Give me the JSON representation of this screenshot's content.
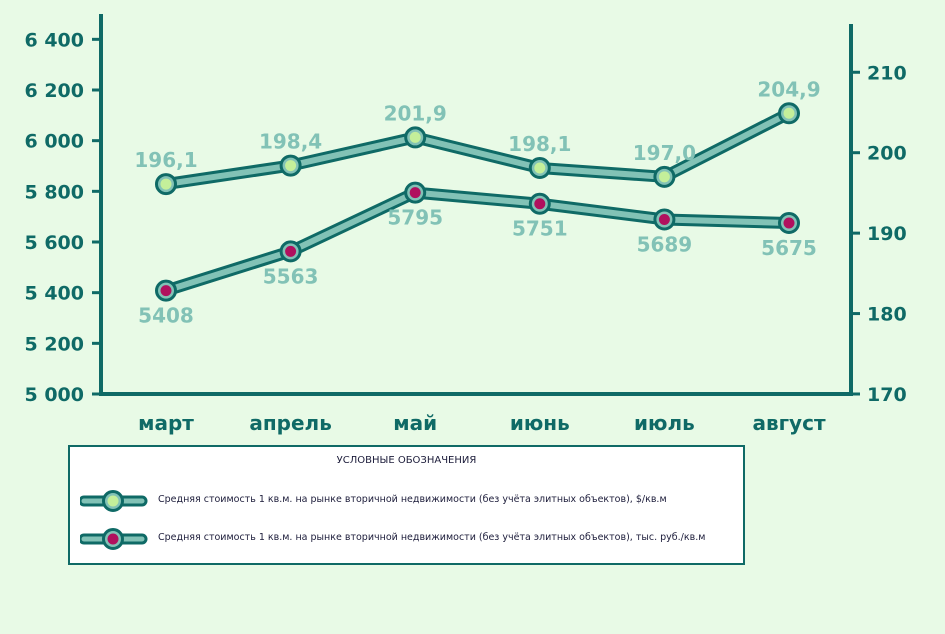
{
  "colors": {
    "background": "#e8fae6",
    "axis": "#0f6a66",
    "tick_text": "#0f6a66",
    "line_fill": "#82c2b6",
    "line_border": "#0f6a66",
    "label_text": "#82c2b6",
    "marker_usd": "#c4ef9a",
    "marker_rub": "#b0105e"
  },
  "chart_data": {
    "type": "line",
    "categories": [
      "март",
      "апрель",
      "май",
      "июнь",
      "июль",
      "август"
    ],
    "y_left": {
      "ticks": [
        5000,
        5200,
        5400,
        5600,
        5800,
        6000,
        6200,
        6400
      ],
      "tick_labels": [
        "5 000",
        "5 200",
        "5 400",
        "5 600",
        "5 800",
        "6 000",
        "6 200",
        "6 400"
      ],
      "ylim": [
        5000,
        6500
      ]
    },
    "y_right": {
      "ticks": [
        170,
        180,
        190,
        200,
        210
      ],
      "tick_labels": [
        "170",
        "180",
        "190",
        "200",
        "210"
      ],
      "ylim": [
        170,
        216
      ]
    },
    "series": [
      {
        "name": "Средняя стоимость 1 кв.м. на рынке вторичной недвижимости (без учёта элитных объектов), $/кв.м",
        "axis": "right",
        "values": [
          196.1,
          198.4,
          201.9,
          198.1,
          197.0,
          204.9
        ],
        "labels": [
          "196,1",
          "198,4",
          "201,9",
          "198,1",
          "197,0",
          "204,9"
        ],
        "label_position": "above",
        "marker_color": "#c4ef9a"
      },
      {
        "name": "Средняя стоимость 1 кв.м. на рынке вторичной недвижимости (без учёта элитных объектов), тыс. руб./кв.м",
        "axis": "left",
        "values": [
          5408,
          5563,
          5795,
          5751,
          5689,
          5675
        ],
        "labels": [
          "5408",
          "5563",
          "5795",
          "5751",
          "5689",
          "5675"
        ],
        "label_position": "below",
        "marker_color": "#b0105e"
      }
    ],
    "legend": {
      "title": "УСЛОВНЫЕ ОБОЗНАЧЕНИЯ",
      "position": "bottom"
    },
    "grid": false
  }
}
